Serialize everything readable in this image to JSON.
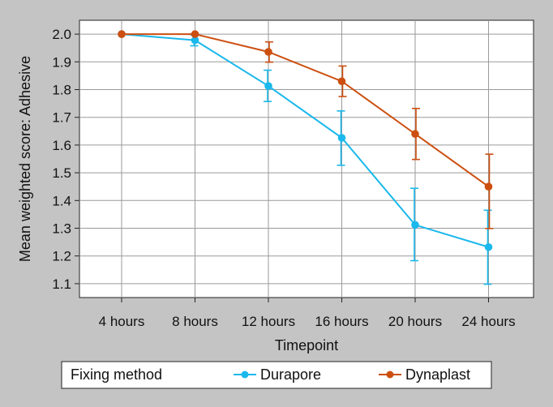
{
  "chart_data": {
    "type": "line",
    "xlabel": "Timepoint",
    "ylabel": "Mean weighted score: Adhesive",
    "categories": [
      "4 hours",
      "8 hours",
      "12 hours",
      "16 hours",
      "20 hours",
      "24 hours"
    ],
    "ylim": [
      1.05,
      2.05
    ],
    "yticks": [
      "1.1",
      "1.2",
      "1.3",
      "1.4",
      "1.5",
      "1.6",
      "1.7",
      "1.8",
      "1.9",
      "2.0"
    ],
    "grid": true,
    "legend": {
      "title": "Fixing method",
      "position": "bottom"
    },
    "series": [
      {
        "name": "Durapore",
        "color": "#1ab8ec",
        "values": [
          2.0,
          1.978,
          1.813,
          1.626,
          1.312,
          1.232
        ],
        "err_low": [
          2.0,
          1.958,
          1.757,
          1.527,
          1.183,
          1.098
        ],
        "err_high": [
          2.0,
          1.997,
          1.87,
          1.723,
          1.444,
          1.365
        ]
      },
      {
        "name": "Dynaplast",
        "color": "#cc4f10",
        "values": [
          2.0,
          2.0,
          1.936,
          1.83,
          1.64,
          1.45
        ],
        "err_low": [
          2.0,
          2.0,
          1.899,
          1.775,
          1.548,
          1.299
        ],
        "err_high": [
          2.0,
          2.0,
          1.972,
          1.885,
          1.732,
          1.567
        ]
      }
    ]
  }
}
